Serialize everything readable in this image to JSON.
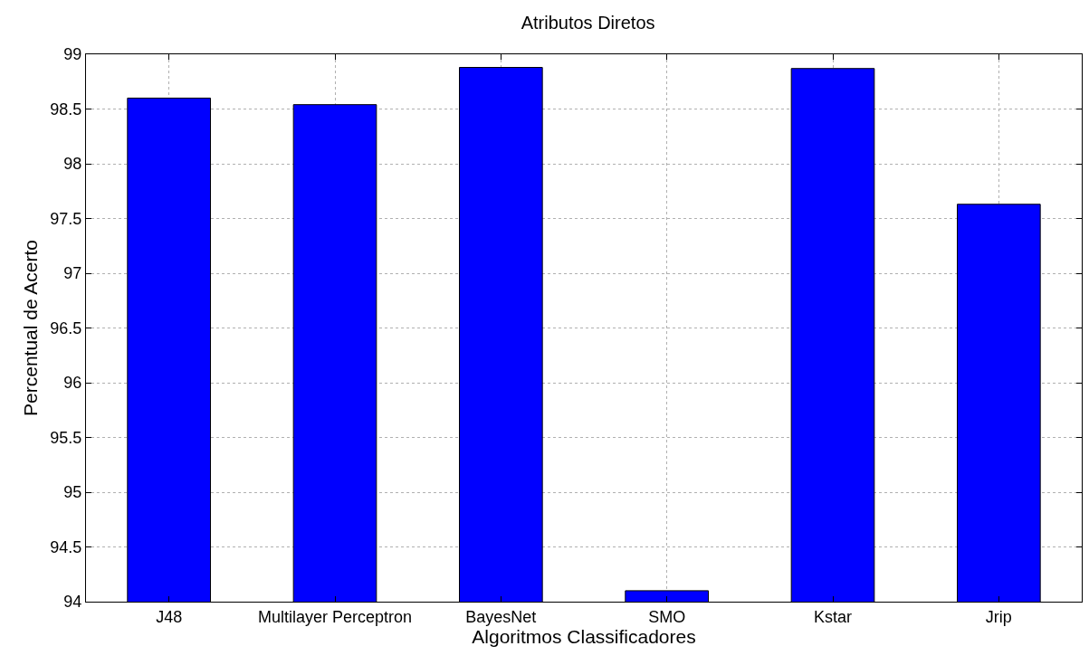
{
  "chart_data": {
    "type": "bar",
    "title": "Atributos Diretos",
    "xlabel": "Algoritmos Classificadores",
    "ylabel": "Percentual de Acerto",
    "categories": [
      "J48",
      "Multilayer Perceptron",
      "BayesNet",
      "SMO",
      "Kstar",
      "Jrip"
    ],
    "values": [
      98.6,
      98.54,
      98.88,
      94.1,
      98.87,
      97.63
    ],
    "color": "#0000ff",
    "ylim": [
      94,
      99
    ],
    "yticks": [
      94,
      94.5,
      95,
      95.5,
      96,
      96.5,
      97,
      97.5,
      98,
      98.5,
      99
    ],
    "grid": true
  }
}
